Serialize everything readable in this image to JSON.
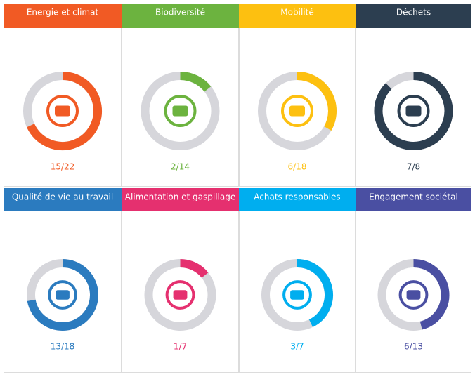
{
  "chart_data": [
    {
      "type": "donut",
      "title": "Energie et climat",
      "value": 15,
      "total": 22,
      "value_label": "15/22",
      "color": "#f15a24"
    },
    {
      "type": "donut",
      "title": "Biodiversité",
      "value": 2,
      "total": 14,
      "value_label": "2/14",
      "color": "#6cb33f"
    },
    {
      "type": "donut",
      "title": "Mobilité",
      "value": 6,
      "total": 18,
      "value_label": "6/18",
      "color": "#fdc010"
    },
    {
      "type": "donut",
      "title": "Déchets",
      "value": 7,
      "total": 8,
      "value_label": "7/8",
      "color": "#2c3e50"
    },
    {
      "type": "donut",
      "title": "Qualité de vie au travail",
      "value": 13,
      "total": 18,
      "value_label": "13/18",
      "color": "#2b7bbf"
    },
    {
      "type": "donut",
      "title": "Alimentation et gaspillage",
      "value": 1,
      "total": 7,
      "value_label": "1/7",
      "color": "#e5306f"
    },
    {
      "type": "donut",
      "title": "Achats responsables",
      "value": 3,
      "total": 7,
      "value_label": "3/7",
      "color": "#00aeef"
    },
    {
      "type": "donut",
      "title": "Engagement sociétal",
      "value": 6,
      "total": 13,
      "value_label": "6/13",
      "color": "#4a4fa2"
    }
  ]
}
